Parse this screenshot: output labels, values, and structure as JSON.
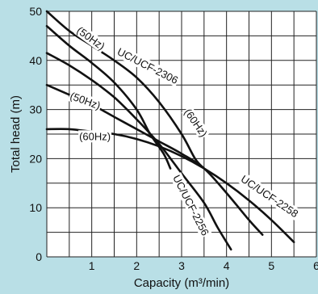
{
  "colors": {
    "background": "#b9dfe6",
    "plot_background": "#ffffff",
    "grid": "#222222",
    "curve": "#111111"
  },
  "chart_data": {
    "type": "line",
    "title": "",
    "xlabel": "Capacity (m³/min)",
    "ylabel": "Total head (m)",
    "xlim": [
      0,
      6
    ],
    "ylim": [
      0,
      50
    ],
    "x_grid_step": 0.5,
    "y_grid_step": 5,
    "x_ticks": [
      "1",
      "2",
      "3",
      "4",
      "5",
      "6"
    ],
    "y_ticks": [
      "0",
      "10",
      "20",
      "30",
      "40",
      "50"
    ],
    "grid": true,
    "series": [
      {
        "x": [
          0,
          0.5,
          1,
          1.5,
          2,
          2.3,
          2.6,
          2.75
        ],
        "y": [
          47,
          43,
          39.5,
          35.5,
          30,
          25,
          21,
          18
        ]
      },
      {
        "x": [
          0,
          0.5,
          1,
          1.5,
          2,
          2.5,
          3,
          3.3,
          3.5
        ],
        "y": [
          50,
          46,
          43,
          40,
          36.5,
          31.5,
          25,
          20,
          18
        ]
      },
      {
        "x": [
          0,
          0.5,
          1,
          1.5,
          2,
          2.5,
          3,
          3.5,
          3.8,
          4.1
        ],
        "y": [
          41.5,
          39,
          36,
          32.5,
          28,
          23,
          17,
          11,
          6,
          1.5
        ]
      },
      {
        "x": [
          0,
          0.5,
          1,
          1.5,
          2,
          2.5,
          3,
          3.5,
          4,
          4.5,
          4.8
        ],
        "y": [
          35,
          33,
          31,
          28.5,
          26,
          23.5,
          21,
          18,
          13,
          7.5,
          4.5
        ]
      },
      {
        "x": [
          0,
          0.5,
          1,
          1.5,
          2,
          2.5,
          3,
          3.5,
          4,
          4.5,
          5,
          5.5
        ],
        "y": [
          26,
          26,
          25.5,
          25,
          24,
          22.5,
          20.5,
          18,
          15,
          11.5,
          7.5,
          3
        ]
      }
    ],
    "annotations": [
      {
        "text": "(50Hz)",
        "x": 0.65,
        "y": 45.8,
        "angle": 36
      },
      {
        "text": "UC/UCF-2306",
        "x": 1.55,
        "y": 41.3,
        "angle": 27
      },
      {
        "text": "(60Hz)",
        "x": 3.05,
        "y": 29.5,
        "angle": 55
      },
      {
        "text": "(50Hz)",
        "x": 0.5,
        "y": 32.2,
        "angle": 20
      },
      {
        "text": "(60Hz)",
        "x": 0.72,
        "y": 23.8,
        "angle": 0
      },
      {
        "text": "UC/UCF-2256",
        "x": 2.8,
        "y": 16.2,
        "angle": 63
      },
      {
        "text": "UC/UCF-2258",
        "x": 4.3,
        "y": 15.5,
        "angle": 34
      }
    ]
  }
}
